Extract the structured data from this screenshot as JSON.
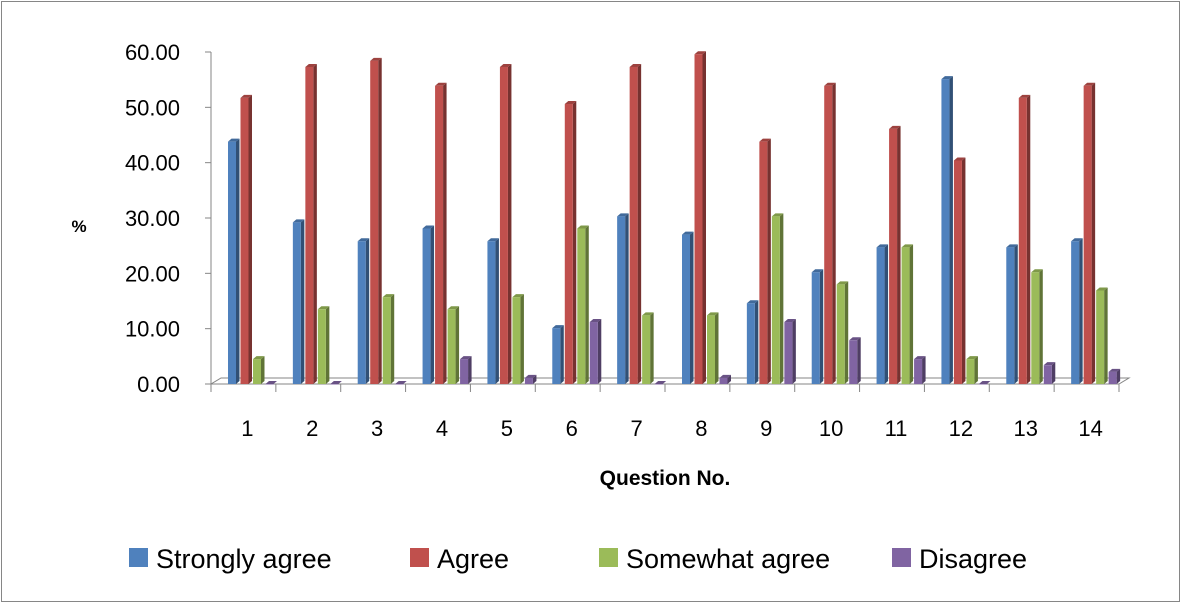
{
  "chart_data": {
    "type": "bar",
    "title": "",
    "xlabel": "Question No.",
    "ylabel": "%",
    "ylim": [
      0,
      60
    ],
    "yticks": [
      "0.00",
      "10.00",
      "20.00",
      "30.00",
      "40.00",
      "50.00",
      "60.00"
    ],
    "grid": false,
    "legend_position": "bottom",
    "categories": [
      "1",
      "2",
      "3",
      "4",
      "5",
      "6",
      "7",
      "8",
      "9",
      "10",
      "11",
      "12",
      "13",
      "14"
    ],
    "series": [
      {
        "name": "Strongly agree",
        "color": "#4F81BD",
        "values": [
          43.8,
          29.2,
          25.8,
          28.1,
          25.8,
          10.1,
          30.3,
          27.0,
          14.6,
          20.2,
          24.7,
          55.1,
          24.7,
          25.8
        ]
      },
      {
        "name": "Agree",
        "color": "#C0504D",
        "values": [
          51.7,
          57.3,
          58.4,
          53.9,
          57.3,
          50.6,
          57.3,
          59.6,
          43.8,
          53.9,
          46.1,
          40.4,
          51.7,
          53.9
        ]
      },
      {
        "name": "Somewhat agree",
        "color": "#9BBB59",
        "values": [
          4.5,
          13.5,
          15.7,
          13.5,
          15.7,
          28.1,
          12.4,
          12.4,
          30.3,
          18.0,
          24.7,
          4.5,
          20.2,
          16.9
        ]
      },
      {
        "name": "Disagree",
        "color": "#8064A2",
        "values": [
          0.0,
          0.0,
          0.0,
          4.5,
          1.1,
          11.2,
          0.0,
          1.1,
          11.2,
          7.9,
          4.5,
          0.0,
          3.4,
          2.2
        ]
      }
    ]
  }
}
